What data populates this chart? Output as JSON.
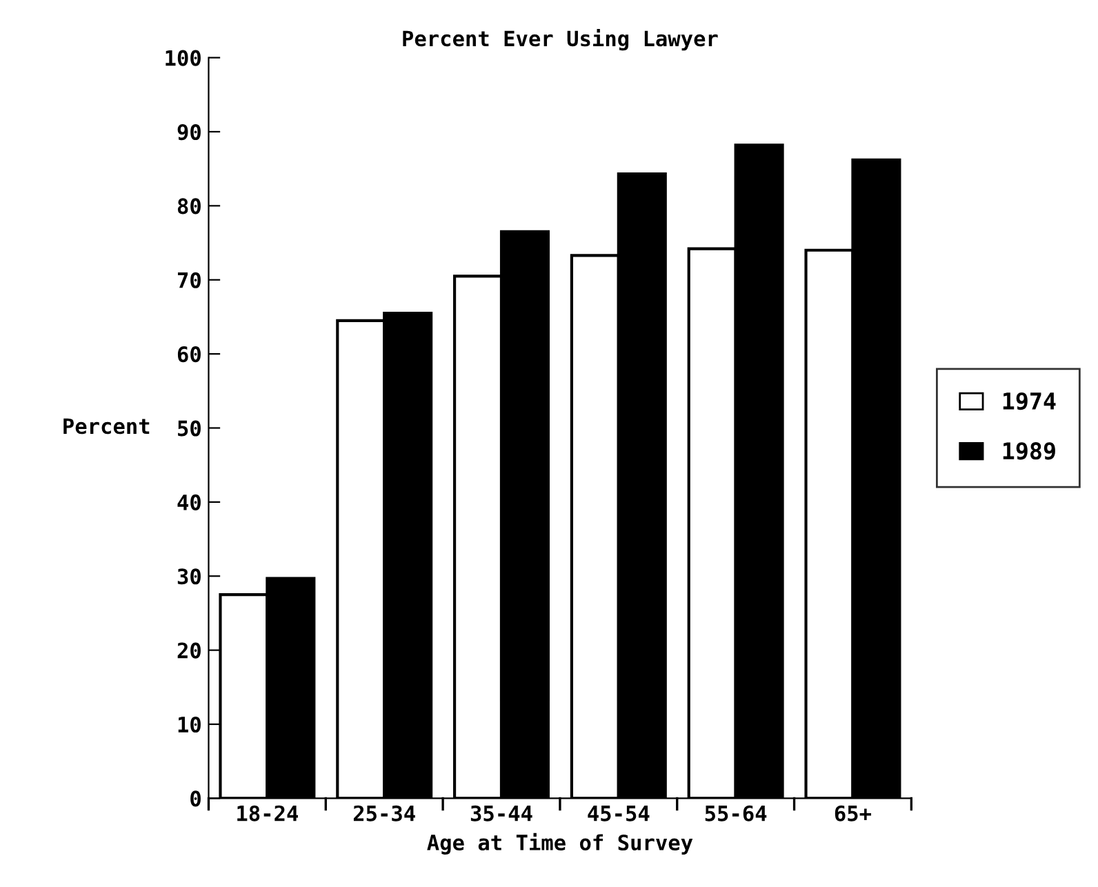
{
  "chart_data": {
    "type": "bar",
    "title": "Percent Ever Using Lawyer",
    "xlabel": "Age at Time of Survey",
    "ylabel": "Percent",
    "categories": [
      "18-24",
      "25-34",
      "35-44",
      "45-54",
      "55-64",
      "65+"
    ],
    "series": [
      {
        "name": "1974",
        "color": "#ffffff",
        "values": [
          27.5,
          64.5,
          70.5,
          73.3,
          74.2,
          74
        ]
      },
      {
        "name": "1989",
        "color": "#000000",
        "values": [
          29.7,
          65.5,
          76.5,
          84.3,
          88.2,
          86.2
        ]
      }
    ],
    "ylim": [
      0,
      100
    ],
    "yticks": [
      0,
      10,
      20,
      30,
      40,
      50,
      60,
      70,
      80,
      90,
      100
    ],
    "grid": false,
    "legend": "right"
  }
}
